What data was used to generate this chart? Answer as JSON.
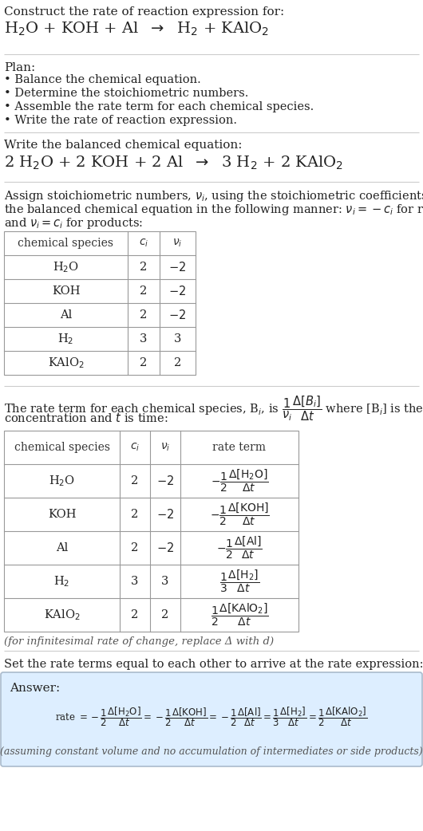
{
  "bg_color": "#ffffff",
  "text_color": "#222222",
  "line_color": "#cccccc",
  "table_line_color": "#999999",
  "answer_box_bg": "#ddeeff",
  "answer_box_edge": "#aabbcc",
  "title_line1": "Construct the rate of reaction expression for:",
  "plan_title": "Plan:",
  "plan_items": [
    "• Balance the chemical equation.",
    "• Determine the stoichiometric numbers.",
    "• Assemble the rate term for each chemical species.",
    "• Write the rate of reaction expression."
  ],
  "balanced_label": "Write the balanced chemical equation:",
  "infinitesimal_note": "(for infinitesimal rate of change, replace Δ with d)",
  "set_equal_text": "Set the rate terms equal to each other to arrive at the rate expression:",
  "answer_label": "Answer:",
  "answer_note": "(assuming constant volume and no accumulation of intermediates or side products)",
  "t1_ci": [
    "2",
    "2",
    "2",
    "3",
    "2"
  ],
  "t2_ci": [
    "2",
    "2",
    "2",
    "3",
    "2"
  ],
  "t2_ni_disp": [
    "-2",
    "-2",
    "-2",
    "3",
    "2"
  ]
}
